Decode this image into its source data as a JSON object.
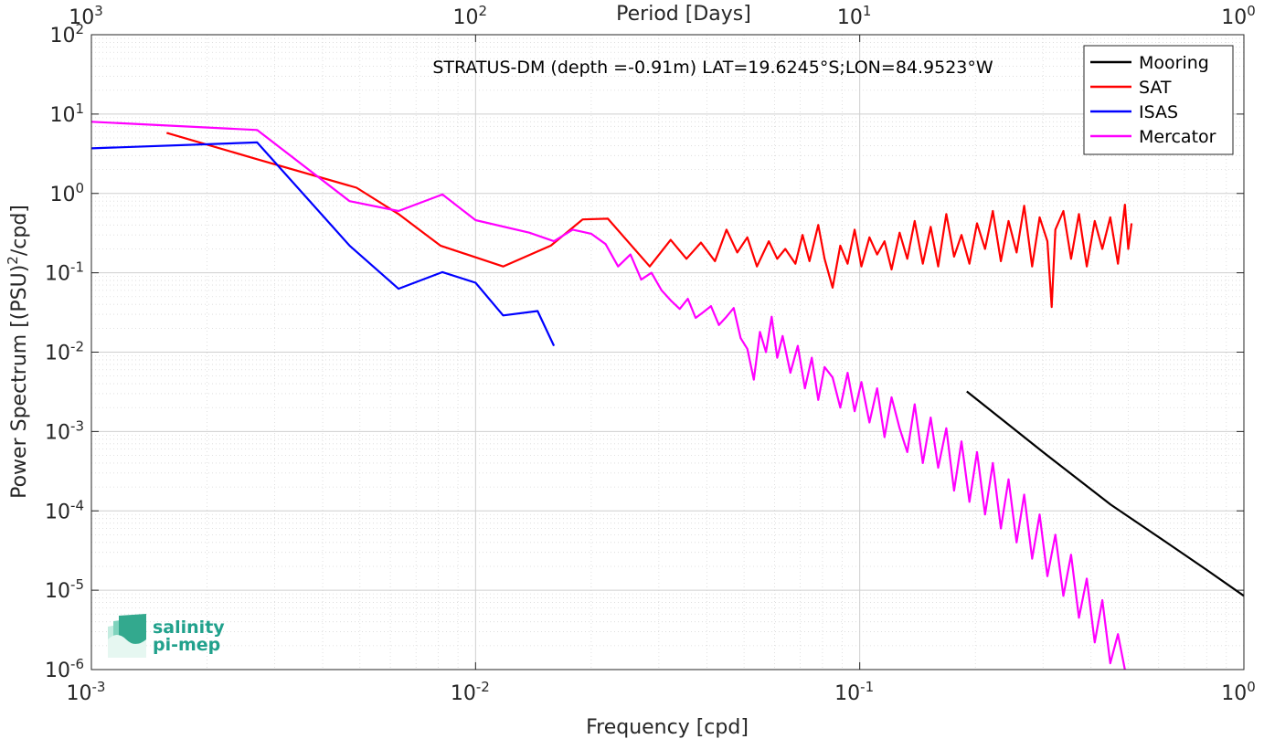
{
  "chart_data": {
    "type": "line",
    "title": "STRATUS-DM (depth =-0.91m) LAT=19.6245°S;LON=84.9523°W",
    "xlabel": "Frequency [cpd]",
    "ylabel_prefix": "Power Spectrum [(PSU)",
    "ylabel_sup": "2",
    "ylabel_suffix": "/cpd]",
    "top_axis_label": "Period [Days]",
    "x_scale": "log",
    "y_scale": "log",
    "xlim": [
      0.001,
      1
    ],
    "ylim": [
      1e-06,
      100
    ],
    "grid": true,
    "legend_position": "top-right",
    "x_ticks": [
      {
        "value": 0.001,
        "base": "10",
        "exp": "-3"
      },
      {
        "value": 0.01,
        "base": "10",
        "exp": "-2"
      },
      {
        "value": 0.1,
        "base": "10",
        "exp": "-1"
      },
      {
        "value": 1,
        "base": "10",
        "exp": "0"
      }
    ],
    "top_ticks": [
      {
        "value": 0.001,
        "base": "10",
        "exp": "3"
      },
      {
        "value": 0.01,
        "base": "10",
        "exp": "2"
      },
      {
        "value": 0.1,
        "base": "10",
        "exp": "1"
      },
      {
        "value": 1,
        "base": "10",
        "exp": "0"
      }
    ],
    "y_ticks": [
      {
        "value": 100,
        "base": "10",
        "exp": "2"
      },
      {
        "value": 10,
        "base": "10",
        "exp": "1"
      },
      {
        "value": 1,
        "base": "10",
        "exp": "0"
      },
      {
        "value": 0.1,
        "base": "10",
        "exp": "-1"
      },
      {
        "value": 0.01,
        "base": "10",
        "exp": "-2"
      },
      {
        "value": 0.001,
        "base": "10",
        "exp": "-3"
      },
      {
        "value": 0.0001,
        "base": "10",
        "exp": "-4"
      },
      {
        "value": 1e-05,
        "base": "10",
        "exp": "-5"
      },
      {
        "value": 1e-06,
        "base": "10",
        "exp": "-6"
      }
    ],
    "series": [
      {
        "name": "Mooring",
        "color": "#000000",
        "x": [
          0.19,
          0.3,
          0.45,
          0.62,
          0.8,
          1.0
        ],
        "y": [
          0.0032,
          0.00055,
          0.00012,
          4.2e-05,
          1.8e-05,
          8.5e-06
        ]
      },
      {
        "name": "SAT",
        "color": "#ff0000",
        "x": [
          0.00157,
          0.0027,
          0.0049,
          0.0063,
          0.0081,
          0.0118,
          0.0157,
          0.019,
          0.0221,
          0.0284,
          0.0322,
          0.0354,
          0.0386,
          0.042,
          0.045,
          0.048,
          0.051,
          0.054,
          0.058,
          0.061,
          0.064,
          0.068,
          0.071,
          0.074,
          0.078,
          0.081,
          0.085,
          0.089,
          0.093,
          0.097,
          0.101,
          0.106,
          0.111,
          0.116,
          0.121,
          0.127,
          0.133,
          0.139,
          0.146,
          0.153,
          0.16,
          0.168,
          0.176,
          0.184,
          0.193,
          0.202,
          0.212,
          0.222,
          0.233,
          0.244,
          0.256,
          0.268,
          0.281,
          0.294,
          0.308,
          0.316,
          0.323,
          0.339,
          0.355,
          0.372,
          0.39,
          0.409,
          0.428,
          0.449,
          0.47,
          0.49,
          0.5,
          0.51
        ],
        "y": [
          5.8,
          2.7,
          1.18,
          0.55,
          0.22,
          0.12,
          0.22,
          0.47,
          0.48,
          0.12,
          0.26,
          0.15,
          0.24,
          0.14,
          0.35,
          0.18,
          0.28,
          0.12,
          0.25,
          0.15,
          0.2,
          0.13,
          0.3,
          0.14,
          0.4,
          0.15,
          0.065,
          0.22,
          0.13,
          0.35,
          0.12,
          0.28,
          0.17,
          0.25,
          0.11,
          0.32,
          0.15,
          0.45,
          0.13,
          0.38,
          0.12,
          0.55,
          0.16,
          0.3,
          0.13,
          0.42,
          0.2,
          0.6,
          0.14,
          0.45,
          0.18,
          0.7,
          0.12,
          0.5,
          0.25,
          0.037,
          0.35,
          0.6,
          0.15,
          0.55,
          0.12,
          0.45,
          0.2,
          0.5,
          0.13,
          0.72,
          0.2,
          0.42
        ]
      },
      {
        "name": "ISAS",
        "color": "#0000ff",
        "x": [
          0.001,
          0.0027,
          0.0047,
          0.0063,
          0.0082,
          0.01,
          0.0118,
          0.0145,
          0.016
        ],
        "y": [
          3.7,
          4.4,
          0.22,
          0.063,
          0.102,
          0.075,
          0.029,
          0.033,
          0.012
        ]
      },
      {
        "name": "Mercator",
        "color": "#ff00ff",
        "x": [
          0.001,
          0.0027,
          0.0047,
          0.0063,
          0.0082,
          0.01,
          0.0138,
          0.016,
          0.0179,
          0.02,
          0.0218,
          0.0235,
          0.0253,
          0.027,
          0.0287,
          0.0305,
          0.0322,
          0.034,
          0.0357,
          0.0374,
          0.0392,
          0.041,
          0.043,
          0.045,
          0.047,
          0.049,
          0.051,
          0.053,
          0.055,
          0.057,
          0.059,
          0.061,
          0.063,
          0.066,
          0.069,
          0.072,
          0.075,
          0.078,
          0.081,
          0.085,
          0.089,
          0.093,
          0.097,
          0.101,
          0.106,
          0.111,
          0.116,
          0.121,
          0.127,
          0.133,
          0.139,
          0.146,
          0.153,
          0.16,
          0.168,
          0.176,
          0.184,
          0.193,
          0.202,
          0.212,
          0.222,
          0.233,
          0.244,
          0.256,
          0.268,
          0.281,
          0.294,
          0.308,
          0.323,
          0.339,
          0.355,
          0.372,
          0.39,
          0.409,
          0.428,
          0.449,
          0.47,
          0.49
        ],
        "y": [
          8.0,
          6.3,
          0.8,
          0.6,
          0.97,
          0.46,
          0.32,
          0.25,
          0.35,
          0.31,
          0.23,
          0.12,
          0.17,
          0.082,
          0.1,
          0.06,
          0.045,
          0.035,
          0.047,
          0.027,
          0.032,
          0.038,
          0.022,
          0.028,
          0.036,
          0.015,
          0.011,
          0.0045,
          0.018,
          0.01,
          0.028,
          0.0085,
          0.016,
          0.0055,
          0.012,
          0.0035,
          0.0085,
          0.0025,
          0.0065,
          0.0048,
          0.002,
          0.0055,
          0.0018,
          0.0042,
          0.0013,
          0.0035,
          0.00085,
          0.0027,
          0.0011,
          0.00055,
          0.0022,
          0.0004,
          0.0015,
          0.00035,
          0.0011,
          0.00018,
          0.00075,
          0.00013,
          0.00055,
          9e-05,
          0.0004,
          6e-05,
          0.00025,
          4e-05,
          0.00016,
          2.5e-05,
          9e-05,
          1.5e-05,
          5e-05,
          8.5e-06,
          2.8e-05,
          4.5e-06,
          1.4e-05,
          2.2e-06,
          7.5e-06,
          1.2e-06,
          2.8e-06,
          1e-06
        ]
      }
    ]
  },
  "logo": {
    "line1": "salinity",
    "line2": "pi-mep",
    "color": "#21a18c"
  }
}
